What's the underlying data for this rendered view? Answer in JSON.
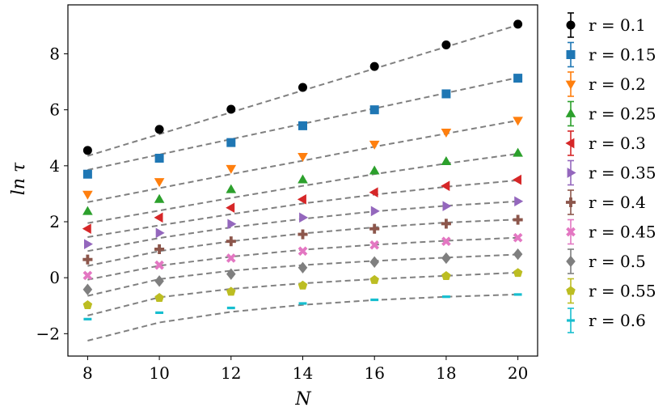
{
  "chart_data": {
    "type": "scatter",
    "xlabel": "N",
    "ylabel": "ln τ",
    "xlim": [
      7.45,
      20.55
    ],
    "ylim": [
      -2.8,
      9.75
    ],
    "x_ticks": [
      8,
      10,
      12,
      14,
      16,
      18,
      20
    ],
    "y_ticks": [
      -2,
      0,
      2,
      4,
      6,
      8
    ],
    "y_tick_labels": [
      "−2",
      "0",
      "2",
      "4",
      "6",
      "8"
    ],
    "grid": false,
    "legend_position": "outside-right",
    "fit_line_color": "#808080",
    "x": [
      8,
      10,
      12,
      14,
      16,
      18,
      20
    ],
    "series": [
      {
        "name": "r = 0.1",
        "color": "#000000",
        "marker": "circle",
        "values": [
          4.55,
          5.3,
          6.02,
          6.8,
          7.55,
          8.32,
          9.06
        ],
        "fit": [
          4.35,
          5.13,
          5.91,
          6.69,
          7.47,
          8.25,
          9.03
        ]
      },
      {
        "name": "r = 0.15",
        "color": "#1f77b4",
        "marker": "square",
        "values": [
          3.7,
          4.27,
          4.83,
          5.43,
          6.0,
          6.57,
          7.13
        ],
        "fit": [
          3.85,
          4.4,
          4.95,
          5.5,
          6.05,
          6.6,
          7.15
        ]
      },
      {
        "name": "r = 0.2",
        "color": "#ff7f0e",
        "marker": "triangle-down",
        "values": [
          2.98,
          3.43,
          3.9,
          4.33,
          4.77,
          5.2,
          5.62
        ],
        "fit": [
          2.7,
          3.2,
          3.7,
          4.18,
          4.68,
          5.15,
          5.62
        ]
      },
      {
        "name": "r = 0.25",
        "color": "#2ca02c",
        "marker": "triangle-up",
        "values": [
          2.37,
          2.8,
          3.15,
          3.5,
          3.82,
          4.15,
          4.45
        ],
        "fit": [
          1.95,
          2.4,
          2.85,
          3.28,
          3.7,
          4.08,
          4.43
        ]
      },
      {
        "name": "r = 0.3",
        "color": "#d62728",
        "marker": "triangle-left",
        "values": [
          1.75,
          2.15,
          2.5,
          2.8,
          3.05,
          3.28,
          3.5
        ],
        "fit": [
          1.45,
          1.87,
          2.27,
          2.65,
          2.97,
          3.25,
          3.48
        ]
      },
      {
        "name": "r = 0.35",
        "color": "#9467bd",
        "marker": "triangle-right",
        "values": [
          1.2,
          1.6,
          1.92,
          2.15,
          2.38,
          2.56,
          2.73
        ],
        "fit": [
          0.95,
          1.42,
          1.8,
          2.1,
          2.37,
          2.57,
          2.73
        ]
      },
      {
        "name": "r = 0.4",
        "color": "#8c564b",
        "marker": "plus",
        "values": [
          0.65,
          1.02,
          1.3,
          1.55,
          1.75,
          1.93,
          2.07
        ],
        "fit": [
          0.42,
          0.95,
          1.3,
          1.58,
          1.8,
          1.97,
          2.08
        ]
      },
      {
        "name": "r = 0.45",
        "color": "#e377c2",
        "marker": "x",
        "values": [
          0.08,
          0.45,
          0.7,
          0.95,
          1.17,
          1.3,
          1.43
        ],
        "fit": [
          -0.07,
          0.43,
          0.75,
          1.0,
          1.18,
          1.32,
          1.43
        ]
      },
      {
        "name": "r = 0.5",
        "color": "#7f7f7f",
        "marker": "diamond",
        "values": [
          -0.42,
          -0.12,
          0.13,
          0.36,
          0.56,
          0.7,
          0.84
        ],
        "fit": [
          -0.65,
          -0.05,
          0.25,
          0.45,
          0.6,
          0.72,
          0.83
        ]
      },
      {
        "name": "r = 0.55",
        "color": "#bcbd22",
        "marker": "pentagon",
        "values": [
          -0.98,
          -0.72,
          -0.5,
          -0.28,
          -0.08,
          0.06,
          0.17
        ],
        "fit": [
          -1.35,
          -0.7,
          -0.4,
          -0.2,
          -0.05,
          0.07,
          0.18
        ]
      },
      {
        "name": "r = 0.6",
        "color": "#17becf",
        "marker": "hline",
        "values": [
          -1.48,
          -1.25,
          -1.08,
          -0.92,
          -0.79,
          -0.68,
          -0.6
        ],
        "fit": [
          -2.25,
          -1.6,
          -1.22,
          -0.97,
          -0.8,
          -0.68,
          -0.6
        ]
      }
    ]
  }
}
